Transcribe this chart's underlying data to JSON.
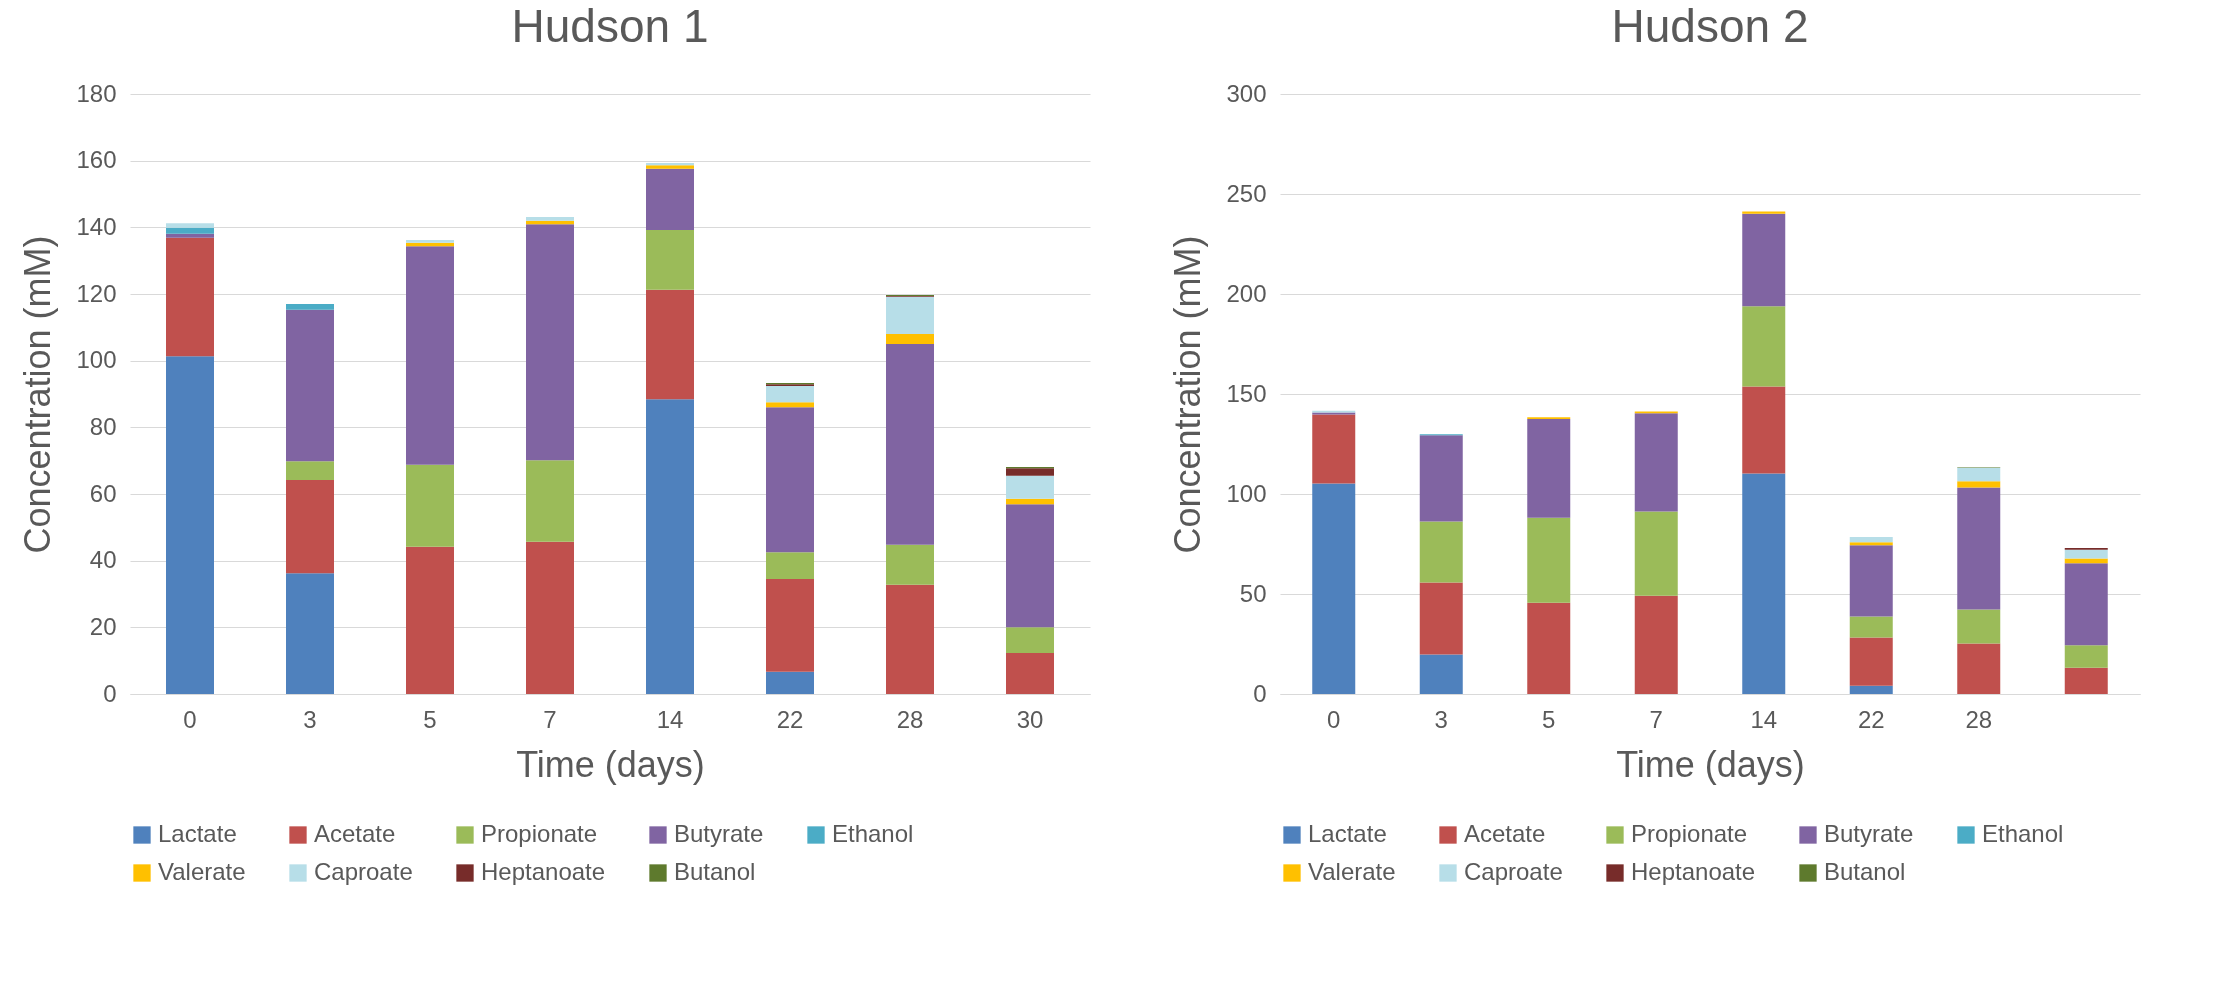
{
  "chart_data": [
    {
      "type": "bar",
      "title": "Hudson 1",
      "xlabel": "Time (days)",
      "ylabel": "Concentration (mM)",
      "categories": [
        "0",
        "3",
        "5",
        "7",
        "14",
        "22",
        "28",
        "30"
      ],
      "stacked": true,
      "ylim": [
        0,
        180
      ],
      "yticks": [
        0,
        20,
        40,
        60,
        80,
        100,
        120,
        140,
        160,
        180
      ],
      "grid": "y",
      "legend": "bottom",
      "series": [
        {
          "name": "Lactate",
          "color": "#4f81bd",
          "values": [
            101.3,
            36.2,
            null,
            null,
            88.4,
            6.7,
            null,
            null
          ]
        },
        {
          "name": "Acetate",
          "color": "#c0504d",
          "values": [
            35.6,
            28.0,
            44.2,
            45.7,
            32.9,
            27.8,
            32.8,
            12.3
          ]
        },
        {
          "name": "Propionate",
          "color": "#9bbb59",
          "values": [
            null,
            5.6,
            24.6,
            24.4,
            17.9,
            8.0,
            12.0,
            7.7
          ]
        },
        {
          "name": "Butyrate",
          "color": "#8064a2",
          "values": [
            1.2,
            45.5,
            65.5,
            70.8,
            18.4,
            43.5,
            60.2,
            36.9
          ]
        },
        {
          "name": "Ethanol",
          "color": "#4bacc6",
          "values": [
            1.8,
            1.7,
            null,
            null,
            null,
            null,
            null,
            null
          ]
        },
        {
          "name": "Valerate",
          "color": "#ffc000",
          "values": [
            null,
            null,
            1.1,
            1.1,
            1.0,
            1.5,
            3.0,
            1.7
          ]
        },
        {
          "name": "Caproate",
          "color": "#b7dee8",
          "values": [
            1.3,
            null,
            0.8,
            1.1,
            0.7,
            4.9,
            11.2,
            6.9
          ]
        },
        {
          "name": "Heptanoate",
          "color": "#772c2a",
          "values": [
            null,
            null,
            null,
            null,
            null,
            0.5,
            0.2,
            2.2
          ]
        },
        {
          "name": "Butanol",
          "color": "#5e7a2d",
          "values": [
            null,
            null,
            null,
            null,
            null,
            0.4,
            0.3,
            0.4
          ]
        }
      ]
    },
    {
      "type": "bar",
      "title": "Hudson 2",
      "xlabel": "Time (days)",
      "ylabel": "Concentration (mM)",
      "categories": [
        "0",
        "3",
        "5",
        "7",
        "14",
        "22",
        "28",
        null
      ],
      "stacked": true,
      "ylim": [
        0,
        300
      ],
      "yticks": [
        0,
        50,
        100,
        150,
        200,
        250,
        300
      ],
      "grid": "y",
      "legend": "bottom",
      "series": [
        {
          "name": "Lactate",
          "color": "#4f81bd",
          "values": [
            105.2,
            19.8,
            null,
            null,
            110.2,
            4.1,
            null,
            null
          ]
        },
        {
          "name": "Acetate",
          "color": "#c0504d",
          "values": [
            34.6,
            36.0,
            45.6,
            49.1,
            43.6,
            24.1,
            25.3,
            13.1
          ]
        },
        {
          "name": "Propionate",
          "color": "#9bbb59",
          "values": [
            null,
            30.5,
            42.5,
            42.2,
            40.1,
            10.5,
            16.9,
            11.3
          ]
        },
        {
          "name": "Butyrate",
          "color": "#8064a2",
          "values": [
            0.9,
            43.1,
            49.4,
            49.1,
            46.2,
            35.7,
            61.0,
            41.0
          ]
        },
        {
          "name": "Ethanol",
          "color": "#4bacc6",
          "values": [
            null,
            0.5,
            null,
            null,
            null,
            null,
            null,
            null
          ]
        },
        {
          "name": "Valerate",
          "color": "#ffc000",
          "values": [
            null,
            null,
            0.9,
            0.9,
            1.2,
            1.5,
            3.2,
            2.3
          ]
        },
        {
          "name": "Caproate",
          "color": "#b7dee8",
          "values": [
            0.9,
            null,
            null,
            null,
            null,
            2.6,
            6.7,
            4.4
          ]
        },
        {
          "name": "Heptanoate",
          "color": "#772c2a",
          "values": [
            null,
            null,
            null,
            null,
            null,
            null,
            null,
            0.9
          ]
        },
        {
          "name": "Butanol",
          "color": "#5e7a2d",
          "values": [
            null,
            null,
            null,
            null,
            null,
            null,
            0.3,
            null
          ]
        }
      ]
    }
  ]
}
